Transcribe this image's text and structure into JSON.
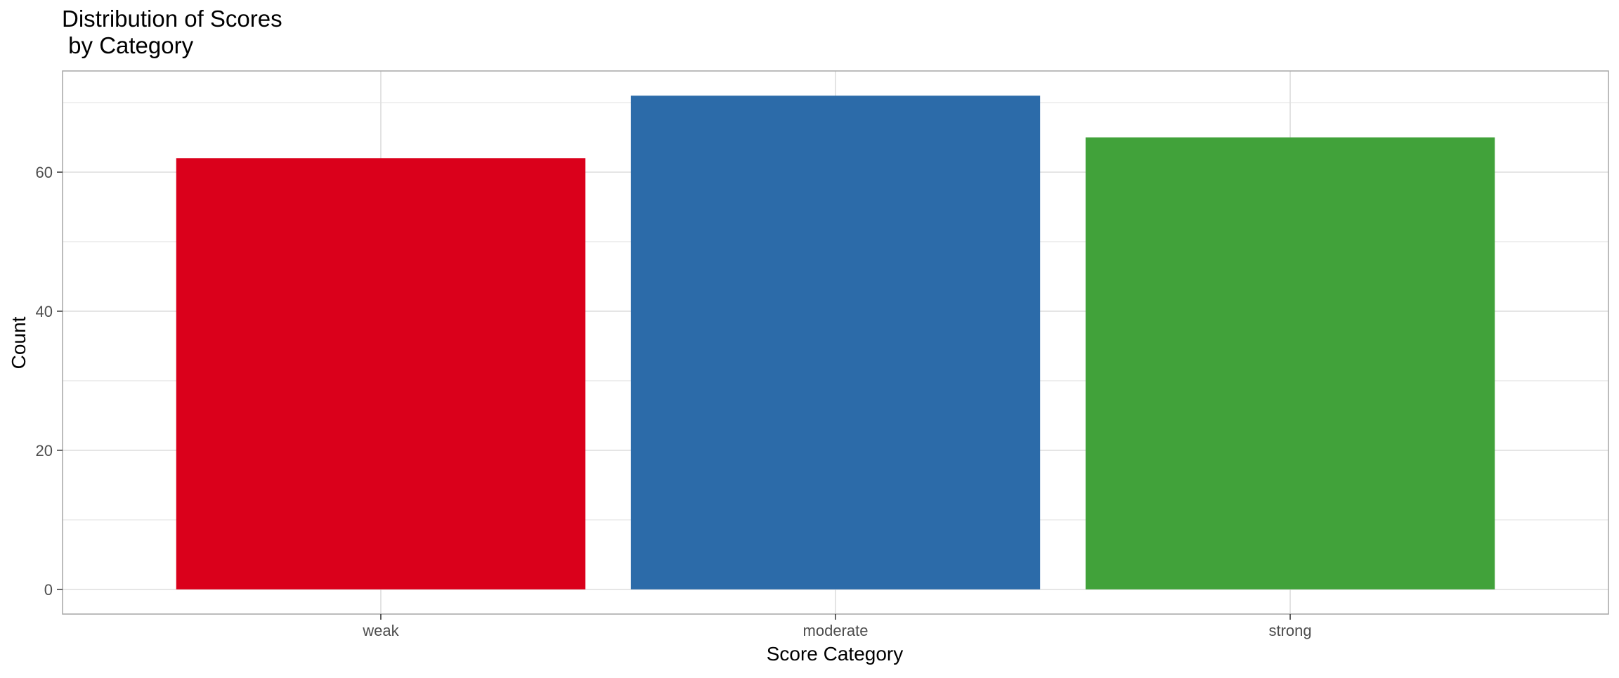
{
  "chart_data": {
    "type": "bar",
    "title": [
      "Distribution of Scores",
      " by Category"
    ],
    "xlabel": "Score Category",
    "ylabel": "Count",
    "categories": [
      "weak",
      "moderate",
      "strong"
    ],
    "values": [
      62,
      71,
      65
    ],
    "colors": [
      "#DA001B",
      "#2C6BA9",
      "#41A23A"
    ],
    "ylim": [
      -3.55,
      74.55
    ],
    "yticks": [
      0,
      20,
      40,
      60
    ],
    "grid": true,
    "legend": "none"
  }
}
